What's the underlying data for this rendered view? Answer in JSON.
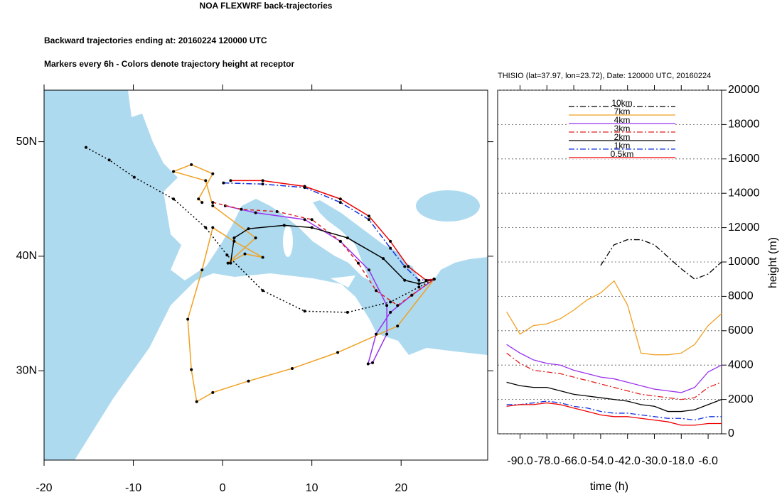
{
  "chart_data": [
    {
      "type": "trajectory",
      "title": "NOA FLEXWRF back-trajectories",
      "subtitles": [
        "Backward trajectories ending at: 20160224  120000 UTC",
        "Markers every 6h - Colors denote trajectory height at receptor"
      ],
      "xlim": [
        -20,
        29.7
      ],
      "ylim": [
        22.2,
        54.5
      ],
      "xticks": [
        -20,
        -10,
        0,
        10,
        20
      ],
      "yticks": [
        {
          "value": 30,
          "label": "30N"
        },
        {
          "value": 40,
          "label": "40N"
        },
        {
          "value": 50,
          "label": "50N"
        }
      ],
      "series": [
        {
          "color": "#000000",
          "dash": "dotted",
          "x": [
            -15.3,
            -12.7,
            -9.9,
            -5.5,
            -1.9,
            0.5,
            4.5,
            9.2,
            14.0,
            18.8,
            22.0,
            23.7
          ],
          "y": [
            49.5,
            48.4,
            46.9,
            45.0,
            42.5,
            40.1,
            37.0,
            35.2,
            35.1,
            36.0,
            37.3,
            38.0
          ]
        },
        {
          "color": "#f0a020",
          "dash": "solid",
          "x": [
            -2.3,
            -2.7,
            -1.1,
            -3.5,
            -5.5,
            -1.9,
            -1.1,
            3.7,
            0.6,
            2.5,
            4.5,
            1.3,
            -1.1,
            -2.3,
            -3.9,
            -3.5,
            -2.9,
            -1.1,
            2.9,
            7.8,
            12.9,
            19.6,
            23.7
          ],
          "y": [
            44.7,
            45.0,
            47.2,
            48.0,
            47.4,
            46.6,
            44.4,
            41.6,
            39.4,
            40.2,
            39.9,
            41.3,
            42.5,
            38.8,
            34.5,
            30.1,
            27.3,
            28.1,
            29.1,
            30.2,
            31.6,
            33.9,
            38.0
          ]
        },
        {
          "color": "#9933ee",
          "dash": "solid",
          "x": [
            0.3,
            3.7,
            9.2,
            13.2,
            16.4,
            18.4,
            18.4,
            16.8,
            16.3,
            17.2,
            18.8,
            21.2,
            23.7
          ],
          "y": [
            44.4,
            43.8,
            43.2,
            41.3,
            38.8,
            35.7,
            33.2,
            30.7,
            30.6,
            33.2,
            35.1,
            36.6,
            38.0
          ]
        },
        {
          "color": "#e02020",
          "dash": "dashed",
          "x": [
            -1.1,
            2.1,
            6.1,
            10.0,
            13.2,
            15.2,
            17.2,
            19.6,
            21.2,
            23.7
          ],
          "y": [
            44.7,
            44.1,
            43.9,
            43.2,
            41.3,
            39.4,
            37.0,
            35.7,
            36.6,
            38.0
          ]
        },
        {
          "color": "#000000",
          "dash": "solid",
          "x": [
            0.9,
            1.3,
            2.9,
            6.9,
            10.0,
            14.0,
            18.0,
            20.4,
            22.0,
            23.7
          ],
          "y": [
            39.4,
            41.6,
            42.4,
            42.7,
            42.5,
            41.6,
            39.8,
            37.9,
            37.6,
            38.0
          ]
        },
        {
          "color": "#1030e0",
          "dash": "dashdot",
          "x": [
            0.1,
            4.5,
            9.2,
            13.2,
            16.4,
            18.8,
            20.4,
            22.0,
            23.7
          ],
          "y": [
            46.4,
            46.3,
            46.0,
            44.7,
            43.2,
            40.7,
            39.1,
            37.9,
            38.0
          ]
        },
        {
          "color": "#ee0000",
          "dash": "solid",
          "x": [
            0.9,
            4.5,
            9.2,
            13.2,
            16.4,
            18.8,
            20.8,
            22.8,
            23.7
          ],
          "y": [
            46.6,
            46.6,
            46.1,
            45.0,
            43.5,
            41.3,
            39.1,
            37.9,
            38.0
          ]
        }
      ]
    },
    {
      "type": "line",
      "title": "THISIO (lat=37.97,  lon=23.72), Date: 120000 UTC, 20160224",
      "xlabel": "time (h)",
      "ylabel": "height (m)",
      "xlim": [
        -100,
        0
      ],
      "ylim": [
        0,
        20000
      ],
      "xticks": [
        {
          "value": -90,
          "label": "-90.0"
        },
        {
          "value": -78,
          "label": "-78.0"
        },
        {
          "value": -66,
          "label": "-66.0"
        },
        {
          "value": -54,
          "label": "-54.0"
        },
        {
          "value": -42,
          "label": "-42.0"
        },
        {
          "value": -30,
          "label": "-30.0"
        },
        {
          "value": -18,
          "label": "-18.0"
        },
        {
          "value": -6,
          "label": "-6.0"
        }
      ],
      "yticks": [
        0,
        2000,
        4000,
        6000,
        8000,
        10000,
        12000,
        14000,
        16000,
        18000,
        20000
      ],
      "grid": true,
      "legend": "top",
      "x": [
        -96,
        -90,
        -84,
        -78,
        -72,
        -66,
        -60,
        -54,
        -48,
        -42,
        -36,
        -30,
        -24,
        -18,
        -12,
        -6,
        0
      ],
      "series": [
        {
          "name": "10km",
          "color": "#000000",
          "dash": "dashdot",
          "values": [
            null,
            null,
            null,
            null,
            null,
            null,
            null,
            9800,
            11000,
            11300,
            11300,
            11000,
            10300,
            9600,
            9000,
            9300,
            10000
          ]
        },
        {
          "name": "7km",
          "color": "#f0a020",
          "dash": "solid",
          "values": [
            7100,
            5800,
            6300,
            6400,
            6700,
            7200,
            7800,
            8200,
            8900,
            7500,
            4700,
            4600,
            4600,
            4700,
            5200,
            6300,
            7000
          ]
        },
        {
          "name": "4km",
          "color": "#9933ee",
          "dash": "solid",
          "values": [
            5200,
            4700,
            4300,
            4100,
            4000,
            3700,
            3500,
            3300,
            3200,
            3000,
            2800,
            2600,
            2500,
            2400,
            2700,
            3600,
            4000
          ]
        },
        {
          "name": "3km",
          "color": "#e02020",
          "dash": "dashdot",
          "values": [
            4700,
            4100,
            3700,
            3600,
            3500,
            3300,
            3100,
            2900,
            2700,
            2500,
            2300,
            2200,
            2100,
            2000,
            2100,
            2700,
            3000
          ]
        },
        {
          "name": "2km",
          "color": "#000000",
          "dash": "solid",
          "values": [
            3000,
            2800,
            2700,
            2700,
            2500,
            2300,
            2200,
            2100,
            2000,
            1900,
            1700,
            1600,
            1300,
            1300,
            1400,
            1700,
            2000
          ]
        },
        {
          "name": "1km",
          "color": "#1030e0",
          "dash": "dashdot",
          "values": [
            1700,
            1700,
            1800,
            1900,
            1800,
            1600,
            1500,
            1300,
            1200,
            1200,
            1100,
            1000,
            900,
            900,
            800,
            1000,
            1000
          ]
        },
        {
          "name": "0.5km",
          "color": "#ee0000",
          "dash": "solid",
          "values": [
            1600,
            1700,
            1700,
            1800,
            1700,
            1500,
            1300,
            1100,
            1000,
            1000,
            900,
            800,
            700,
            500,
            500,
            600,
            600
          ]
        }
      ]
    }
  ]
}
